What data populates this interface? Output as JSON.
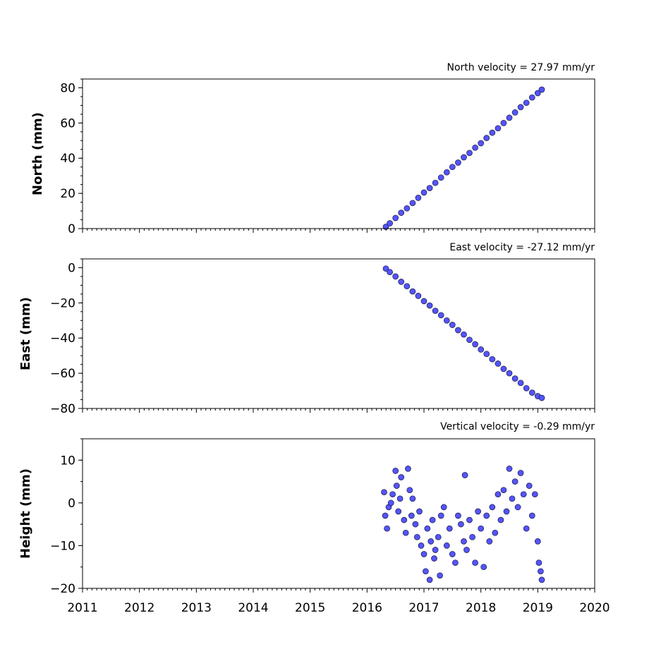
{
  "chart_data": [
    {
      "type": "scatter",
      "title": "North velocity = 27.97 mm/yr",
      "ylabel": "North (mm)",
      "xlabel": "",
      "xlim": [
        2011,
        2020
      ],
      "ylim": [
        0,
        85
      ],
      "yticks": [
        0,
        20,
        40,
        60,
        80
      ],
      "series": [
        {
          "x": [
            2016.33,
            2016.4,
            2016.5,
            2016.6,
            2016.7,
            2016.8,
            2016.9,
            2017.0,
            2017.1,
            2017.2,
            2017.3,
            2017.4,
            2017.5,
            2017.6,
            2017.7,
            2017.8,
            2017.9,
            2018.0,
            2018.1,
            2018.2,
            2018.3,
            2018.4,
            2018.5,
            2018.6,
            2018.7,
            2018.8,
            2018.9,
            2019.0,
            2019.07
          ],
          "y": [
            1,
            3,
            6,
            9,
            11.5,
            14.5,
            17.5,
            20.5,
            23,
            26,
            29,
            32,
            35,
            37.5,
            40.5,
            43,
            46,
            48.5,
            51.5,
            54.5,
            57,
            60,
            63,
            66,
            69,
            71.5,
            74.5,
            77,
            79
          ]
        }
      ]
    },
    {
      "type": "scatter",
      "title": "East velocity = -27.12 mm/yr",
      "ylabel": "East (mm)",
      "xlabel": "",
      "xlim": [
        2011,
        2020
      ],
      "ylim": [
        -80,
        5
      ],
      "yticks": [
        0,
        -20,
        -40,
        -60,
        -80
      ],
      "series": [
        {
          "x": [
            2016.33,
            2016.4,
            2016.5,
            2016.6,
            2016.7,
            2016.8,
            2016.9,
            2017.0,
            2017.1,
            2017.2,
            2017.3,
            2017.4,
            2017.5,
            2017.6,
            2017.7,
            2017.8,
            2017.9,
            2018.0,
            2018.1,
            2018.2,
            2018.3,
            2018.4,
            2018.5,
            2018.6,
            2018.7,
            2018.8,
            2018.9,
            2019.0,
            2019.07
          ],
          "y": [
            -0.5,
            -2.5,
            -5,
            -8,
            -10.5,
            -13.5,
            -16,
            -19,
            -21.5,
            -24.5,
            -27,
            -30,
            -32.5,
            -35.5,
            -38,
            -41,
            -43.5,
            -46.5,
            -49,
            -52,
            -54.5,
            -57.5,
            -60,
            -63,
            -65.5,
            -68.5,
            -71,
            -73,
            -74
          ]
        }
      ]
    },
    {
      "type": "scatter",
      "title": "Vertical velocity = -0.29 mm/yr",
      "ylabel": "Height (mm)",
      "xlabel": "",
      "xlim": [
        2011,
        2020
      ],
      "ylim": [
        -20,
        15
      ],
      "yticks": [
        10,
        0,
        -10,
        -20
      ],
      "series": [
        {
          "x": [
            2016.3,
            2016.32,
            2016.35,
            2016.38,
            2016.42,
            2016.45,
            2016.5,
            2016.52,
            2016.55,
            2016.58,
            2016.6,
            2016.65,
            2016.68,
            2016.72,
            2016.75,
            2016.78,
            2016.8,
            2016.85,
            2016.88,
            2016.92,
            2016.95,
            2017.0,
            2017.03,
            2017.06,
            2017.1,
            2017.12,
            2017.15,
            2017.18,
            2017.2,
            2017.25,
            2017.28,
            2017.3,
            2017.35,
            2017.4,
            2017.45,
            2017.5,
            2017.55,
            2017.6,
            2017.65,
            2017.7,
            2017.72,
            2017.75,
            2017.8,
            2017.85,
            2017.9,
            2017.95,
            2018.0,
            2018.05,
            2018.1,
            2018.15,
            2018.2,
            2018.25,
            2018.3,
            2018.35,
            2018.4,
            2018.45,
            2018.5,
            2018.55,
            2018.6,
            2018.65,
            2018.7,
            2018.75,
            2018.8,
            2018.85,
            2018.9,
            2018.95,
            2019.0,
            2019.02,
            2019.05,
            2019.07
          ],
          "y": [
            2.5,
            -3,
            -6,
            -1,
            0,
            2,
            7.5,
            4,
            -2,
            1,
            6,
            -4,
            -7,
            8,
            3,
            -3,
            1,
            -5,
            -8,
            -2,
            -10,
            -12,
            -16,
            -6,
            -18,
            -9,
            -4,
            -13,
            -11,
            -8,
            -17,
            -3,
            -1,
            -10,
            -6,
            -12,
            -14,
            -3,
            -5,
            -9,
            6.5,
            -11,
            -4,
            -8,
            -14,
            -2,
            -6,
            -15,
            -3,
            -9,
            -1,
            -7,
            2,
            -4,
            3,
            -2,
            8,
            1,
            5,
            -1,
            7,
            2,
            -6,
            4,
            -3,
            2,
            -9,
            -14,
            -16,
            -18
          ]
        }
      ]
    }
  ],
  "x_tick_labels": [
    "2011",
    "2012",
    "2013",
    "2014",
    "2015",
    "2016",
    "2017",
    "2018",
    "2019",
    "2020"
  ],
  "style": {
    "marker_fill": "#5454ff",
    "marker_edge": "#1a1a40"
  }
}
